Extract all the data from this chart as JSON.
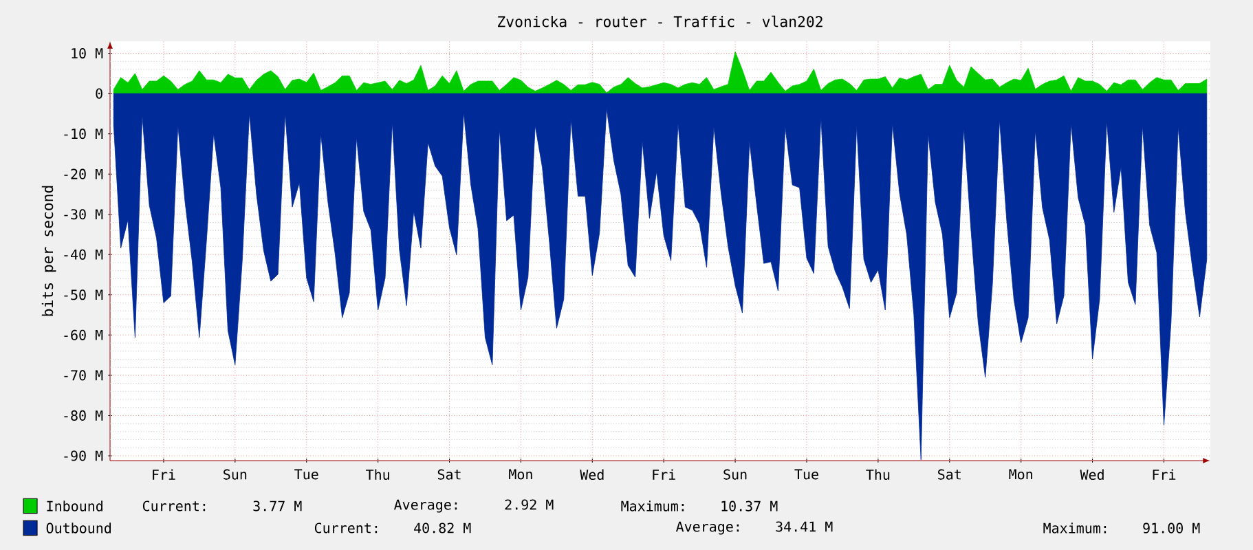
{
  "chart_data": {
    "type": "area",
    "title": "Zvonicka - router - Traffic - vlan202",
    "ylabel": "bits per second",
    "categories": [
      null,
      null,
      null,
      null,
      null,
      null,
      null,
      "Fri",
      null,
      null,
      null,
      null,
      null,
      null,
      null,
      null,
      null,
      "Sun",
      null,
      null,
      null,
      null,
      null,
      null,
      null,
      null,
      null,
      "Tue",
      null,
      null,
      null,
      null,
      null,
      null,
      null,
      null,
      null,
      "Thu",
      null,
      null,
      null,
      null,
      null,
      null,
      null,
      null,
      null,
      "Sat",
      null,
      null,
      null,
      null,
      null,
      null,
      null,
      null,
      null,
      "Mon",
      null,
      null,
      null,
      null,
      null,
      null,
      null,
      null,
      null,
      "Wed",
      null,
      null,
      null,
      null,
      null,
      null,
      null,
      null,
      null,
      "Fri",
      null,
      null,
      null,
      null,
      null,
      null,
      null,
      null,
      null,
      "Sun",
      null,
      null,
      null,
      null,
      null,
      null,
      null,
      null,
      null,
      "Tue",
      null,
      null,
      null,
      null,
      null,
      null,
      null,
      null,
      null,
      "Thu",
      null,
      null,
      null,
      null,
      null,
      null,
      null,
      null,
      null,
      "Sat",
      null,
      null,
      null,
      null,
      null,
      null,
      null,
      null,
      null,
      "Mon",
      null,
      null,
      null,
      null,
      null,
      null,
      null,
      null,
      null,
      "Wed",
      null,
      null,
      null,
      null,
      null,
      null,
      null,
      null,
      null,
      "Fri",
      null,
      null,
      null,
      null,
      null,
      null
    ],
    "series": [
      {
        "name": "Inbound",
        "color": "#00cc00",
        "values": [
          1.0,
          4.0,
          2.7,
          5.0,
          1.0,
          3.1,
          3.1,
          4.4,
          3.1,
          1.0,
          2.3,
          3.1,
          5.7,
          3.4,
          3.4,
          2.7,
          4.8,
          3.9,
          3.9,
          1.0,
          3.3,
          4.8,
          5.7,
          4.2,
          1.0,
          3.3,
          3.6,
          2.8,
          5.1,
          0.8,
          1.7,
          2.7,
          4.4,
          4.4,
          0.8,
          2.7,
          2.3,
          2.7,
          3.1,
          1.0,
          3.3,
          2.5,
          3.4,
          7.0,
          0.8,
          1.9,
          4.4,
          2.5,
          5.7,
          0.6,
          2.3,
          3.1,
          3.1,
          3.1,
          0.8,
          2.3,
          4.0,
          3.3,
          1.6,
          0.6,
          1.4,
          2.3,
          3.3,
          2.3,
          0.8,
          2.2,
          2.2,
          2.8,
          2.3,
          0.2,
          1.6,
          2.3,
          4.0,
          2.5,
          1.4,
          1.7,
          2.2,
          2.7,
          2.3,
          1.4,
          2.3,
          2.7,
          2.3,
          4.0,
          1.0,
          1.7,
          2.3,
          10.4,
          5.9,
          0.8,
          3.1,
          3.1,
          5.3,
          2.8,
          0.6,
          1.9,
          2.3,
          3.1,
          6.1,
          0.8,
          2.5,
          3.4,
          3.6,
          2.5,
          0.8,
          3.4,
          3.6,
          3.6,
          4.2,
          1.4,
          3.9,
          3.4,
          4.2,
          4.8,
          1.0,
          2.3,
          2.3,
          7.0,
          3.3,
          1.6,
          6.7,
          5.0,
          3.4,
          3.6,
          1.6,
          2.7,
          3.6,
          3.3,
          6.3,
          1.1,
          2.3,
          3.1,
          3.4,
          4.4,
          0.6,
          4.0,
          3.1,
          3.1,
          2.3,
          0.6,
          2.7,
          2.2,
          3.4,
          3.4,
          1.0,
          2.7,
          4.0,
          3.4,
          3.4,
          0.8,
          2.5,
          2.5,
          2.5,
          3.6
        ]
      },
      {
        "name": "Outbound",
        "color": "#002a97",
        "values": [
          -7.7,
          -38.4,
          -31.4,
          -60.6,
          -5.5,
          -27.8,
          -35.9,
          -52,
          -50.3,
          -8,
          -27,
          -41.8,
          -60.6,
          -36.4,
          -10,
          -23.4,
          -58.9,
          -67.4,
          -41.6,
          -4.9,
          -25.1,
          -39,
          -46.6,
          -44.9,
          -4.9,
          -28.2,
          -22.2,
          -45.8,
          -51.7,
          -10,
          -27,
          -39.8,
          -55.7,
          -49.5,
          -10.9,
          -29.3,
          -33.9,
          -53.8,
          -45.8,
          -7.2,
          -38.8,
          -52.7,
          -29.3,
          -38.4,
          -12.2,
          -18,
          -20.5,
          -33.3,
          -40.1,
          -4.7,
          -22.7,
          -33.6,
          -60.6,
          -67.4,
          -8.9,
          -31.6,
          -30.2,
          -53.8,
          -45.6,
          -8,
          -18.3,
          -37,
          -58.3,
          -51.1,
          -6.4,
          -25.5,
          -25.5,
          -45.2,
          -34.7,
          -3.8,
          -16.6,
          -25,
          -42.7,
          -45.6,
          -11.9,
          -31,
          -19.4,
          -35.3,
          -41.5,
          -7.5,
          -28.2,
          -29,
          -32.4,
          -43.2,
          -8.3,
          -24.4,
          -38,
          -47.7,
          -54.5,
          -11.9,
          -27.6,
          -42.2,
          -41.8,
          -49,
          -8.3,
          -22.7,
          -23.4,
          -40.9,
          -44.7,
          -6,
          -38,
          -44.2,
          -48.1,
          -53.4,
          -8,
          -41.2,
          -46.9,
          -43.8,
          -53.8,
          -7.5,
          -24.8,
          -35,
          -54.9,
          -91,
          -10,
          -27,
          -35,
          -55.7,
          -49.5,
          -8.6,
          -33.9,
          -56.8,
          -70.5,
          -47.4,
          -6.6,
          -31.6,
          -51.1,
          -61.9,
          -55.7,
          -9.2,
          -28.4,
          -36.4,
          -57.2,
          -50.3,
          -7.5,
          -25.9,
          -32.7,
          -65.9,
          -51.1,
          -6.8,
          -29.5,
          -18.3,
          -46.9,
          -52.4,
          -8,
          -32.7,
          -39.5,
          -82.4,
          -56.8,
          -8.3,
          -29.5,
          -43.2,
          -55.5,
          -41.2
        ]
      }
    ],
    "ylim": [
      -91.2,
      13
    ],
    "yticks": [
      {
        "value": 10,
        "label": "10 M"
      },
      0,
      {
        "value": -10,
        "label": "-10 M"
      },
      {
        "value": -20,
        "label": "-20 M"
      },
      {
        "value": -30,
        "label": "-30 M"
      },
      {
        "value": -40,
        "label": "-40 M"
      },
      {
        "value": -50,
        "label": "-50 M"
      },
      {
        "value": -60,
        "label": "-60 M"
      },
      {
        "value": -70,
        "label": "-70 M"
      },
      {
        "value": -80,
        "label": "-80 M"
      },
      {
        "value": -90,
        "label": "-90 M"
      }
    ],
    "grid": true,
    "legend": "bottom",
    "annotations": [
      "Current:    3.77 M",
      "Average:    2.92 M",
      "Maximum:   10.37 M",
      "Current:   40.82 M",
      "Average:   34.41 M",
      "Maximum:   91.00 M"
    ]
  }
}
